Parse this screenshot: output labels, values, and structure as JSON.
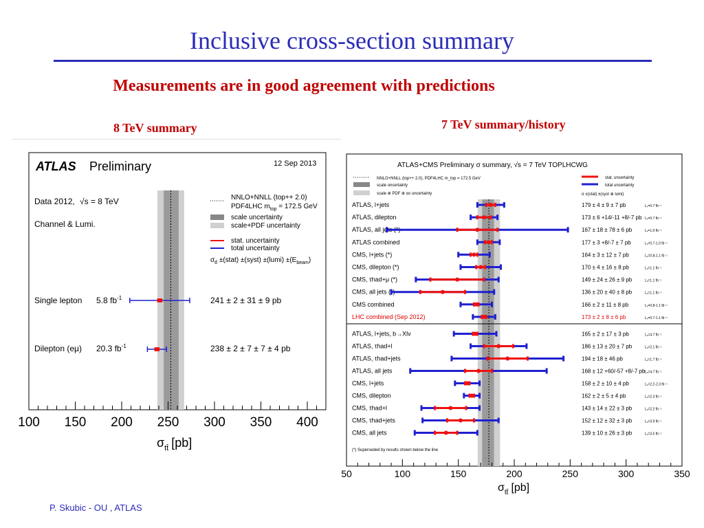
{
  "slide": {
    "title": "Inclusive cross-section summary",
    "subtitle": "Measurements are in good agreement with predictions",
    "left_heading": "8 TeV summary",
    "right_heading": "7 TeV summary/history",
    "footer": "P. Skubic - OU , ATLAS"
  },
  "colors": {
    "title": "#2b2bb8",
    "heading": "#c00000",
    "stat": "#ee1111",
    "total": "#1f1fd0",
    "scale_band": "#9a9a9a",
    "pdf_band": "#d0d0d0",
    "lhc_text": "#dd0000"
  },
  "chart_data": [
    {
      "type": "forest",
      "header": {
        "atlas": "ATLAS",
        "preliminary": "Preliminary",
        "date": "12 Sep 2013"
      },
      "info": [
        "Data 2012,",
        "√s = 8 TeV",
        "Channel & Lumi."
      ],
      "legend": {
        "theory": [
          "NNLO+NNLL (top++ 2.0)",
          "PDF4LHC m",
          "top",
          " = 172.5 GeV"
        ],
        "scale": "scale uncertainty",
        "pdf": "scale+PDF uncertainty",
        "stat": "stat. uncertainty",
        "total": "total uncertainty",
        "format": [
          "σ",
          "tt̄",
          " ±(stat) ±(syst) ±(lumi) ±(E",
          "beam",
          ")"
        ]
      },
      "theory": {
        "value": 252.9,
        "scale": [
          245.3,
          261.4
        ],
        "pdf": [
          238.4,
          267.3
        ]
      },
      "xlim": [
        100,
        420
      ],
      "ticks": [
        "100",
        "150",
        "200",
        "250",
        "300",
        "350",
        "400"
      ],
      "tick_values": [
        100,
        150,
        200,
        250,
        300,
        350,
        400
      ],
      "xlabel": {
        "sigma": "σ",
        "sub": "tt̄",
        "unit": "[pb]"
      },
      "measurements": [
        {
          "channel": "Single lepton",
          "lumi": "5.8 fb",
          "lumi_sup": "-1",
          "value": 241,
          "stat": 2,
          "total": 32.3,
          "result": "241 ± 2 ± 31 ± 9 pb"
        },
        {
          "channel": "Dilepton (eμ)",
          "lumi": "20.3 fb",
          "lumi_sup": "-1",
          "value": 238,
          "stat": 2,
          "total": 10.3,
          "result": "238 ± 2 ± 7 ± 7 ± 4 pb"
        }
      ]
    },
    {
      "type": "forest",
      "header": "ATLAS+CMS Preliminary    σ summary, √s = 7 TeV   TOPLHCWG",
      "legend": {
        "theory": "NNLO+NNLL (top++ 2.0), PDF4LHC m_top = 172.5 GeV",
        "scale": "scale uncertainty",
        "pdf": "scale ⊕ PDF ⊕ αs uncertainty",
        "stat": "stat. uncertainty",
        "total": "total uncertainty",
        "format": "σ ±(stat) ±(syst ⊕ lumi)"
      },
      "theory": {
        "value": 177.3,
        "scale": [
          171.3,
          181.9
        ],
        "pdf": [
          167.3,
          187.3
        ]
      },
      "xlim": [
        50,
        350
      ],
      "ticks": [
        "50",
        "100",
        "150",
        "200",
        "250",
        "300",
        "350"
      ],
      "tick_values": [
        50,
        100,
        150,
        200,
        250,
        300,
        350
      ],
      "xlabel": {
        "sigma": "σ",
        "sub": "tt̄",
        "unit": "[pb]"
      },
      "footnote": "(*) Superseded by results shown below the line",
      "measurements_top": [
        {
          "label": "ATLAS, l+jets",
          "value": 179,
          "stat": 4,
          "total": 12,
          "result": "179 ± 4 ± 9 ± 7 pb",
          "lumi": "Lₓ=0.7 fb⁻¹"
        },
        {
          "label": "ATLAS, dilepton",
          "value": 173,
          "stat": 6,
          "total": 12,
          "result": "173 ± 6 +14/-11 +8/-7 pb",
          "lumi": "Lₓ=0.7 fb⁻¹"
        },
        {
          "label": "ATLAS, all jets (*)",
          "value": 167,
          "stat": 18,
          "total": 81,
          "result": "167 ± 18 ± 78 ± 6 pb",
          "lumi": "Lₓ=1.0 fb⁻¹"
        },
        {
          "label": "ATLAS combined",
          "value": 177,
          "stat": 3,
          "total": 10,
          "result": "177 ± 3 +8/-7 ± 7 pb",
          "lumi": "Lₓ=0.7-1.0 fb⁻¹"
        },
        {
          "label": "CMS, l+jets (*)",
          "value": 164,
          "stat": 3,
          "total": 14,
          "result": "164 ± 3 ± 12 ± 7 pb",
          "lumi": "Lₓ=0.8-1.1 fb⁻¹"
        },
        {
          "label": "CMS, dilepton (*)",
          "value": 170,
          "stat": 4,
          "total": 18,
          "result": "170 ± 4 ± 16 ± 8 pb",
          "lumi": "Lₓ=1.1 fb⁻¹"
        },
        {
          "label": "CMS, τhad+μ (*)",
          "value": 149,
          "stat": 24,
          "total": 37,
          "result": "149 ± 24 ± 26 ± 9 pb",
          "lumi": "Lₓ=1.1 fb⁻¹"
        },
        {
          "label": "CMS, all jets (*)",
          "value": 136,
          "stat": 20,
          "total": 46,
          "result": "136 ± 20 ± 40 ± 8 pb",
          "lumi": "Lₓ=1.1 fb⁻¹"
        },
        {
          "label": "CMS combined",
          "value": 166,
          "stat": 2,
          "total": 14,
          "result": "166 ± 2 ± 11 ± 8 pb",
          "lumi": "Lₓ=0.8-1.1 fb⁻¹"
        },
        {
          "label": "LHC combined (Sep 2012)",
          "value": 173,
          "stat": 2,
          "total": 10,
          "result": "173 ± 2 ± 8 ± 6 pb",
          "lumi": "Lₓ=0.7-1.1 fb⁻¹",
          "highlight": true
        }
      ],
      "measurements_bottom": [
        {
          "label": "ATLAS, l+jets, b→Xlν",
          "value": 165,
          "stat": 2,
          "total": 19,
          "result": "165 ± 2 ± 17 ± 3 pb",
          "lumi": "Lₓ=4.7 fb⁻¹"
        },
        {
          "label": "ATLAS, τhad+l",
          "value": 186,
          "stat": 13,
          "total": 25,
          "result": "186 ± 13 ± 20 ± 7 pb",
          "lumi": "Lₓ=2.1 fb⁻¹"
        },
        {
          "label": "ATLAS, τhad+jets",
          "value": 194,
          "stat": 18,
          "total": 50,
          "result": "194 ± 18 ± 46 pb",
          "lumi": "Lₓ=1.7 fb⁻¹"
        },
        {
          "label": "ATLAS, all jets",
          "value": 168,
          "stat": 12,
          "total": 61,
          "result": "168 ± 12 +60/-57 +8/-7 pb",
          "lumi": "Lₓ=4.7 fb⁻¹"
        },
        {
          "label": "CMS, l+jets",
          "value": 158,
          "stat": 2,
          "total": 11,
          "result": "158 ± 2 ± 10 ± 4 pb",
          "lumi": "Lₓ=2.2-2.3 fb⁻¹"
        },
        {
          "label": "CMS, dilepton",
          "value": 162,
          "stat": 2,
          "total": 7,
          "result": "162 ± 2 ± 5 ± 4 pb",
          "lumi": "Lₓ=2.3 fb⁻¹"
        },
        {
          "label": "CMS, τhad+l",
          "value": 143,
          "stat": 14,
          "total": 26,
          "result": "143 ± 14 ± 22 ± 3 pb",
          "lumi": "Lₓ=2.2 fb⁻¹"
        },
        {
          "label": "CMS, τhad+jets",
          "value": 152,
          "stat": 12,
          "total": 34,
          "result": "152 ± 12 ± 32 ± 3 pb",
          "lumi": "Lₓ=3.9 fb⁻¹"
        },
        {
          "label": "CMS, all jets",
          "value": 139,
          "stat": 10,
          "total": 28,
          "result": "139 ± 10 ± 26 ± 3 pb",
          "lumi": "Lₓ=3.5 fb⁻¹"
        }
      ]
    }
  ]
}
